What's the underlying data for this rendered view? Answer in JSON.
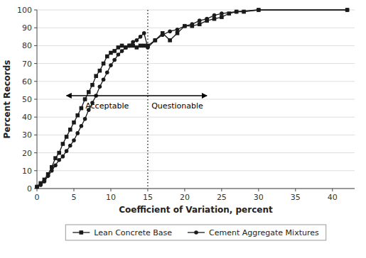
{
  "chart_data": {
    "type": "line",
    "xlabel": "Coefficient of Variation, percent",
    "ylabel": "Percent Records",
    "xlim": [
      0,
      43
    ],
    "ylim": [
      0,
      100
    ],
    "xticks": [
      0,
      5,
      10,
      15,
      20,
      25,
      30,
      35,
      40
    ],
    "yticks": [
      0,
      10,
      20,
      30,
      40,
      50,
      60,
      70,
      80,
      90,
      100
    ],
    "grid": "y",
    "legend": "bottom",
    "series": [
      {
        "name": "Lean Concrete Base",
        "color": "#1a1a1a",
        "marker": "square",
        "line_style": "solid",
        "x": [
          0,
          0.5,
          1,
          1.5,
          2,
          2.5,
          3,
          3.5,
          4,
          4.5,
          5,
          5.5,
          6,
          6.5,
          7,
          7.5,
          8,
          8.5,
          9,
          9.5,
          10,
          10.5,
          11,
          11.5,
          12,
          12.5,
          13,
          13.5,
          14,
          14.5,
          15,
          16,
          17,
          18,
          19,
          20,
          21,
          22,
          23,
          24,
          25,
          26,
          27,
          28,
          30,
          42
        ],
        "values": [
          1,
          3,
          5,
          8,
          12,
          17,
          20,
          25,
          29,
          33,
          37,
          41,
          45,
          50,
          54,
          58,
          63,
          66,
          70,
          74,
          76,
          77,
          79,
          80,
          79,
          80,
          80,
          79,
          80,
          80,
          80,
          83,
          87,
          83,
          87,
          91,
          91,
          92,
          94,
          95,
          96,
          98,
          99,
          99,
          100,
          100
        ]
      },
      {
        "name": "Cement Aggregate Mixtures",
        "color": "#1a1a1a",
        "marker": "circle",
        "line_style": "solid",
        "x": [
          0,
          0.5,
          1,
          1.5,
          2,
          2.5,
          3,
          3.5,
          4,
          4.5,
          5,
          5.5,
          6,
          6.5,
          7,
          7.5,
          8,
          8.5,
          9,
          9.5,
          10,
          10.5,
          11,
          11.5,
          12,
          12.5,
          13,
          13.5,
          14,
          14.5,
          15,
          16,
          17,
          18,
          19,
          20,
          21,
          22,
          23,
          24,
          25,
          27,
          30,
          42
        ],
        "values": [
          1,
          2,
          4,
          7,
          10,
          13,
          16,
          18,
          21,
          24,
          27,
          31,
          35,
          39,
          44,
          48,
          52,
          57,
          61,
          65,
          69,
          72,
          75,
          77,
          79,
          80,
          82,
          83,
          85,
          87,
          79,
          83,
          86,
          88,
          89,
          91,
          92,
          94,
          95,
          97,
          98,
          99,
          100,
          100
        ]
      }
    ],
    "vline": {
      "x": 15,
      "line_style": "dotted"
    },
    "arrow": {
      "x": [
        4,
        23
      ],
      "y": 52
    },
    "annotations": [
      {
        "text": "Acceptable",
        "x": 9.5,
        "y": 48
      },
      {
        "text": "Questionable",
        "x": 19,
        "y": 48
      }
    ]
  }
}
